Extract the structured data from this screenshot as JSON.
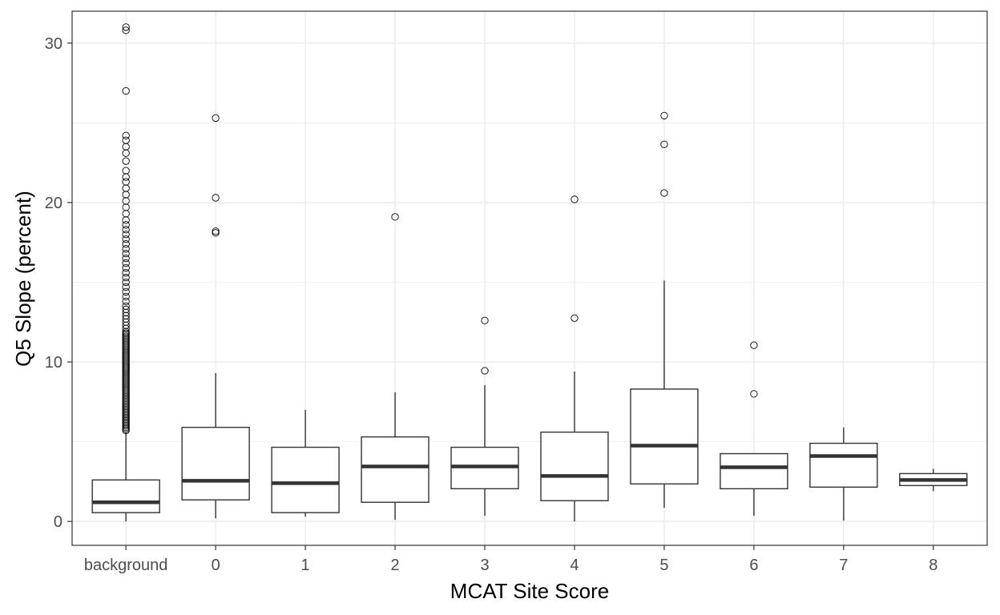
{
  "chart_data": {
    "type": "boxplot",
    "title": "",
    "xlabel": "MCAT Site Score",
    "ylabel": "Q5 Slope (percent)",
    "ylim": [
      -1.5,
      32
    ],
    "yticks": [
      0,
      10,
      20,
      30
    ],
    "yticks_labels": [
      "0",
      "10",
      "20",
      "30"
    ],
    "grid": true,
    "categories": [
      "background",
      "0",
      "1",
      "2",
      "3",
      "4",
      "5",
      "6",
      "7",
      "8"
    ],
    "boxes": [
      {
        "category": "background",
        "min": 0.0,
        "q1": 0.55,
        "median": 1.2,
        "q3": 2.6,
        "max": 5.6,
        "outliers": [
          5.7,
          5.8,
          5.9,
          6.0,
          6.1,
          6.2,
          6.3,
          6.4,
          6.5,
          6.6,
          6.7,
          6.8,
          6.9,
          7.0,
          7.1,
          7.2,
          7.3,
          7.4,
          7.5,
          7.6,
          7.7,
          7.8,
          7.9,
          8.0,
          8.1,
          8.2,
          8.3,
          8.4,
          8.5,
          8.6,
          8.7,
          8.8,
          8.9,
          9.0,
          9.1,
          9.2,
          9.3,
          9.4,
          9.5,
          9.6,
          9.7,
          9.8,
          9.9,
          10.0,
          10.1,
          10.2,
          10.3,
          10.4,
          10.5,
          10.6,
          10.7,
          10.8,
          10.9,
          11.0,
          11.1,
          11.2,
          11.3,
          11.4,
          11.5,
          11.6,
          11.7,
          11.8,
          11.9,
          12.1,
          12.3,
          12.5,
          12.7,
          12.9,
          13.1,
          13.3,
          13.5,
          13.8,
          14.1,
          14.4,
          14.7,
          15.0,
          15.3,
          15.6,
          15.9,
          16.2,
          16.5,
          16.8,
          17.1,
          17.4,
          17.7,
          18.0,
          18.3,
          18.6,
          18.9,
          19.3,
          19.7,
          20.1,
          20.5,
          20.9,
          21.3,
          21.6,
          22.0,
          22.6,
          23.1,
          23.5,
          23.9,
          24.2,
          27.0,
          30.8,
          31.0
        ]
      },
      {
        "category": "0",
        "min": 0.2,
        "q1": 1.35,
        "median": 2.55,
        "q3": 5.9,
        "max": 9.3,
        "outliers": [
          18.1,
          18.2,
          20.3,
          25.3
        ]
      },
      {
        "category": "1",
        "min": 0.3,
        "q1": 0.55,
        "median": 2.4,
        "q3": 4.65,
        "max": 7.0,
        "outliers": []
      },
      {
        "category": "2",
        "min": 0.1,
        "q1": 1.2,
        "median": 3.45,
        "q3": 5.3,
        "max": 8.1,
        "outliers": [
          19.1
        ]
      },
      {
        "category": "3",
        "min": 0.35,
        "q1": 2.05,
        "median": 3.45,
        "q3": 4.65,
        "max": 8.55,
        "outliers": [
          9.45,
          12.6
        ]
      },
      {
        "category": "4",
        "min": 0.0,
        "q1": 1.3,
        "median": 2.85,
        "q3": 5.6,
        "max": 9.4,
        "outliers": [
          12.75,
          20.2
        ]
      },
      {
        "category": "5",
        "min": 0.85,
        "q1": 2.35,
        "median": 4.75,
        "q3": 8.3,
        "max": 15.1,
        "outliers": [
          20.6,
          23.65,
          25.45
        ]
      },
      {
        "category": "6",
        "min": 0.35,
        "q1": 2.05,
        "median": 3.4,
        "q3": 4.25,
        "max": 4.25,
        "outliers": [
          8.0,
          11.05
        ]
      },
      {
        "category": "7",
        "min": 0.05,
        "q1": 2.15,
        "median": 4.1,
        "q3": 4.9,
        "max": 5.9,
        "outliers": []
      },
      {
        "category": "8",
        "min": 1.9,
        "q1": 2.25,
        "median": 2.6,
        "q3": 3.0,
        "max": 3.3,
        "outliers": []
      }
    ],
    "colors": {
      "box_line": "#333333",
      "box_fill": "#ffffff",
      "grid": "#ebebeb",
      "panel_border": "#333333"
    }
  }
}
